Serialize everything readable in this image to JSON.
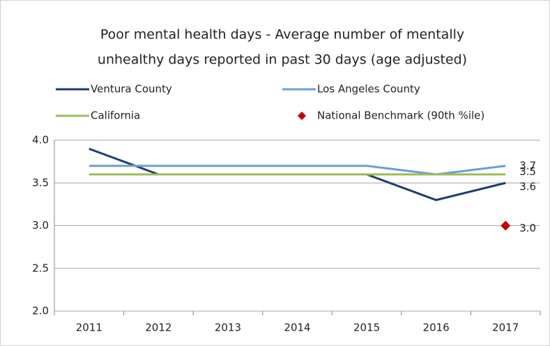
{
  "chart_data": {
    "type": "line",
    "title": [
      "Poor mental health days - Average number of mentally",
      "unhealthy days reported in past 30 days (age adjusted)"
    ],
    "categories": [
      "2011",
      "2012",
      "2013",
      "2014",
      "2015",
      "2016",
      "2017"
    ],
    "series": [
      {
        "name": "Ventura County",
        "color": "#1f3d6e",
        "values": [
          3.9,
          3.6,
          3.6,
          3.6,
          3.6,
          3.3,
          3.5
        ]
      },
      {
        "name": "Los Angeles County",
        "color": "#6a9fd4",
        "values": [
          3.7,
          3.7,
          3.7,
          3.7,
          3.7,
          3.6,
          3.7
        ]
      },
      {
        "name": "California",
        "color": "#9bbb59",
        "values": [
          3.6,
          3.6,
          3.6,
          3.6,
          3.6,
          3.6,
          3.6
        ]
      },
      {
        "name": "National Benchmark (90th %ile)",
        "color": "#c00000",
        "marker": "diamond",
        "values": [
          null,
          null,
          null,
          null,
          null,
          null,
          3
        ],
        "value_labels": [
          null,
          null,
          null,
          null,
          null,
          null,
          "3.0"
        ]
      }
    ],
    "ylim": [
      2,
      4
    ],
    "yticks": [
      {
        "value": 2,
        "label": "2.0"
      },
      2.5,
      {
        "value": 3,
        "label": "3.0"
      },
      3.5,
      {
        "value": 4,
        "label": "4.0"
      }
    ],
    "grid": true
  }
}
